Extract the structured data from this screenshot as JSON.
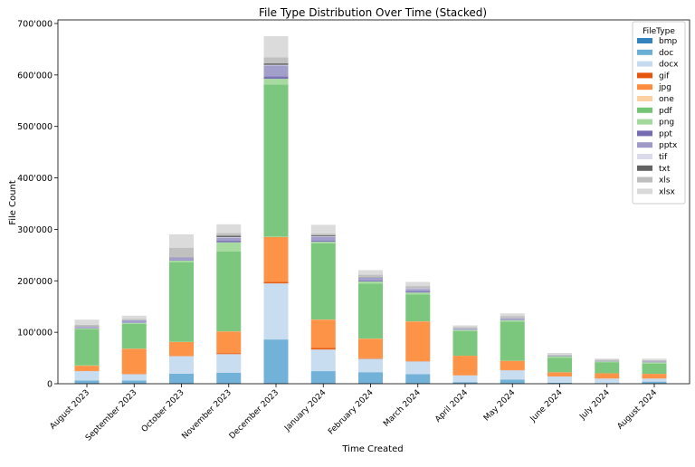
{
  "chart_data": {
    "type": "bar",
    "stacked": true,
    "title": "File Type Distribution Over Time (Stacked)",
    "xlabel": "Time Created",
    "ylabel": "File Count",
    "ylim": [
      0,
      707000
    ],
    "yticks": [
      0,
      100000,
      200000,
      300000,
      400000,
      500000,
      600000,
      700000
    ],
    "ytick_labels": [
      "0",
      "100'000",
      "200'000",
      "300'000",
      "400'000",
      "500'000",
      "600'000",
      "700'000"
    ],
    "grid": false,
    "legend": {
      "title": "FileType",
      "placement": "top-right"
    },
    "categories": [
      "August 2023",
      "September 2023",
      "October 2023",
      "November 2023",
      "December 2023",
      "January 2024",
      "February 2024",
      "March 2024",
      "April 2024",
      "May 2024",
      "June 2024",
      "July 2024",
      "August 2024"
    ],
    "series": [
      {
        "name": "bmp",
        "color": "#3182bd",
        "values": [
          500,
          500,
          500,
          500,
          1000,
          500,
          500,
          500,
          200,
          200,
          100,
          100,
          100
        ]
      },
      {
        "name": "doc",
        "color": "#6baed6",
        "values": [
          6000,
          6000,
          19000,
          21000,
          85000,
          24000,
          22000,
          18000,
          3000,
          8000,
          2000,
          1000,
          4000
        ]
      },
      {
        "name": "docx",
        "color": "#c6dbef",
        "values": [
          18000,
          12000,
          34000,
          36000,
          109000,
          42000,
          26000,
          25000,
          13000,
          18000,
          12000,
          9000,
          6000
        ]
      },
      {
        "name": "gif",
        "color": "#e6550d",
        "values": [
          500,
          500,
          500,
          2000,
          3000,
          3000,
          1000,
          500,
          200,
          300,
          100,
          100,
          100
        ]
      },
      {
        "name": "jpg",
        "color": "#fd8d3c",
        "values": [
          10000,
          49000,
          27000,
          42000,
          87000,
          55000,
          38000,
          77000,
          38000,
          18000,
          8000,
          10000,
          9000
        ]
      },
      {
        "name": "one",
        "color": "#fdd0a2",
        "values": [
          500,
          300,
          300,
          300,
          500,
          300,
          300,
          300,
          100,
          100,
          100,
          100,
          100
        ]
      },
      {
        "name": "pdf",
        "color": "#74c476",
        "values": [
          70000,
          48000,
          155000,
          155000,
          296000,
          148000,
          107000,
          52000,
          48000,
          76000,
          28000,
          21000,
          20000
        ]
      },
      {
        "name": "png",
        "color": "#a1d99b",
        "values": [
          2000,
          2000,
          3000,
          18000,
          11000,
          3000,
          4000,
          4000,
          2000,
          3000,
          3000,
          2000,
          2000
        ]
      },
      {
        "name": "ppt",
        "color": "#756bb1",
        "values": [
          1000,
          1000,
          1000,
          3000,
          5000,
          2000,
          2000,
          2000,
          500,
          500,
          300,
          300,
          300
        ]
      },
      {
        "name": "pptx",
        "color": "#9e9ac8",
        "values": [
          2000,
          4000,
          5000,
          6000,
          21000,
          8000,
          5000,
          5000,
          2000,
          3000,
          1000,
          1000,
          2000
        ]
      },
      {
        "name": "tif",
        "color": "#dadaeb",
        "values": [
          500,
          500,
          500,
          1000,
          1000,
          1000,
          1000,
          1000,
          200,
          300,
          100,
          100,
          100
        ]
      },
      {
        "name": "txt",
        "color": "#636363",
        "values": [
          500,
          500,
          500,
          3000,
          3000,
          2000,
          1000,
          500,
          200,
          300,
          100,
          100,
          100
        ]
      },
      {
        "name": "xls",
        "color": "#bdbdbd",
        "values": [
          3000,
          2000,
          18000,
          5000,
          12000,
          3000,
          4000,
          4000,
          3000,
          4000,
          2000,
          2000,
          2000
        ]
      },
      {
        "name": "xlsx",
        "color": "#d9d9d9",
        "values": [
          10000,
          6000,
          26000,
          17000,
          41000,
          17000,
          9000,
          8000,
          3000,
          5000,
          3000,
          2000,
          3000
        ]
      }
    ]
  }
}
